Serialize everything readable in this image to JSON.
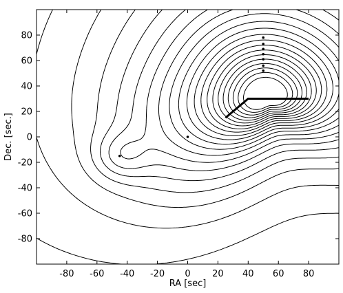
{
  "chart_data": {
    "type": "contour",
    "title": "",
    "xlabel": "RA [sec]",
    "ylabel": "Dec. [sec.]",
    "xlim": [
      -100,
      100
    ],
    "ylim": [
      -100,
      100
    ],
    "grid": false,
    "xticks": [
      -80,
      -60,
      -40,
      -20,
      0,
      20,
      40,
      60,
      80
    ],
    "yticks": [
      -80,
      -60,
      -40,
      -20,
      0,
      20,
      40,
      60,
      80
    ],
    "peak": [
      52,
      31
    ],
    "secondary_peak": [
      -44,
      -15
    ],
    "markers": [
      {
        "x": -45,
        "y": -15
      },
      {
        "x": 0,
        "y": 0
      },
      {
        "x": 50,
        "y": 78
      },
      {
        "x": 50,
        "y": 73
      },
      {
        "x": 50,
        "y": 69
      },
      {
        "x": 50,
        "y": 65
      },
      {
        "x": 50,
        "y": 61
      },
      {
        "x": 50,
        "y": 56
      },
      {
        "x": 50,
        "y": 52
      }
    ],
    "lines": [
      {
        "points": [
          [
            25,
            15
          ],
          [
            40,
            30
          ],
          [
            80,
            30
          ]
        ]
      }
    ],
    "contour_count": 22
  }
}
